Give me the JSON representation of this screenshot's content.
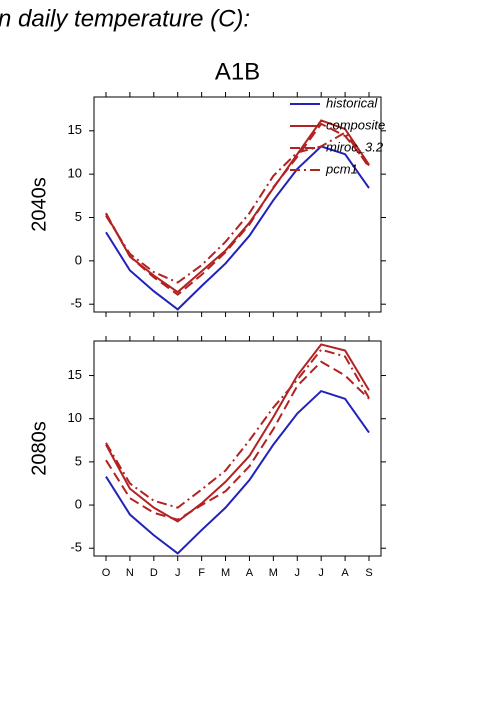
{
  "page_title": "n daily temperature (C):",
  "chart_data": [
    {
      "type": "line",
      "title": "A1B",
      "ylabel": "2040s",
      "legend": "upper right",
      "ylim": [
        -5.9,
        18.9
      ],
      "yticks": [
        -5,
        0,
        5,
        10,
        15
      ],
      "series": [
        {
          "name": "historical",
          "color": "#2222bb",
          "dash": "solid",
          "values": [
            3.3,
            -1.1,
            -3.5,
            -5.6,
            -2.9,
            -0.3,
            2.9,
            7.0,
            10.6,
            13.2,
            12.3,
            8.4
          ]
        },
        {
          "name": "composite",
          "color": "#b22222",
          "dash": "solid",
          "values": [
            5.4,
            0.5,
            -1.7,
            -3.6,
            -1.2,
            1.2,
            4.4,
            8.4,
            12.3,
            16.2,
            15.2,
            11.1
          ]
        },
        {
          "name": "miroc_3.2",
          "color": "#b22222",
          "dash": "dashed",
          "values": [
            5.5,
            0.5,
            -1.9,
            -3.9,
            -1.6,
            1.0,
            4.2,
            8.5,
            12.0,
            15.8,
            14.4,
            11.0
          ]
        },
        {
          "name": "pcm1",
          "color": "#b22222",
          "dash": "dashdot",
          "values": [
            5.2,
            0.8,
            -1.3,
            -2.5,
            -0.5,
            2.2,
            5.5,
            9.8,
            12.5,
            13.2,
            14.8,
            10.8
          ]
        }
      ]
    },
    {
      "type": "line",
      "ylabel": "2080s",
      "categories": [
        "O",
        "N",
        "D",
        "J",
        "F",
        "M",
        "A",
        "M",
        "J",
        "J",
        "A",
        "S"
      ],
      "ylim": [
        -5.9,
        19.0
      ],
      "yticks": [
        -5,
        0,
        5,
        10,
        15
      ],
      "series": [
        {
          "color": "#2222bb",
          "dash": "solid",
          "values": [
            3.3,
            -1.1,
            -3.5,
            -5.6,
            -2.9,
            -0.3,
            2.9,
            7.0,
            10.6,
            13.2,
            12.3,
            8.4
          ]
        },
        {
          "color": "#b22222",
          "dash": "solid",
          "values": [
            7.0,
            1.9,
            -0.3,
            -1.9,
            0.2,
            2.7,
            5.7,
            10.2,
            15.0,
            18.6,
            17.9,
            13.3
          ]
        },
        {
          "color": "#b22222",
          "dash": "dashed",
          "values": [
            5.2,
            0.8,
            -0.9,
            -1.7,
            0.0,
            1.6,
            4.5,
            8.8,
            13.8,
            16.6,
            15.0,
            12.3
          ]
        },
        {
          "color": "#b22222",
          "dash": "dashdot",
          "values": [
            7.2,
            2.5,
            0.5,
            -0.3,
            1.8,
            4.0,
            7.5,
            11.3,
            14.5,
            18.0,
            17.2,
            12.4
          ]
        }
      ]
    }
  ]
}
